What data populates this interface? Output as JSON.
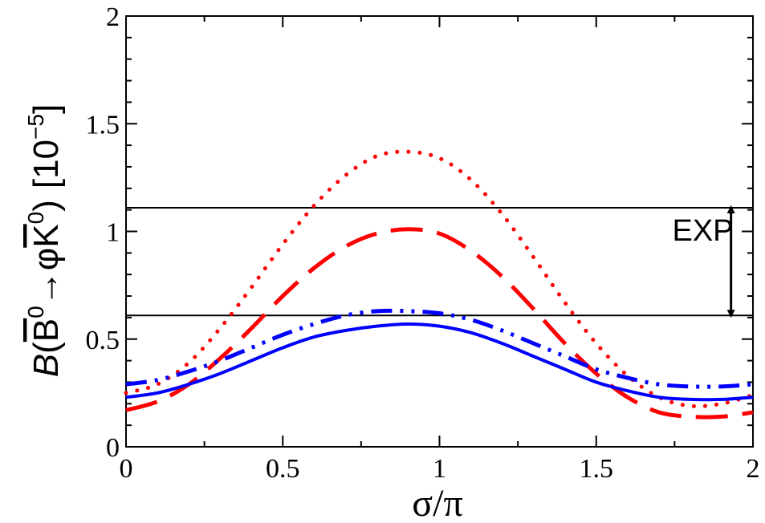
{
  "chart_data": {
    "type": "line",
    "title": "",
    "xlabel": "σ/π",
    "ylabel": {
      "prefix": "B",
      "paren_open": "(",
      "b_letter": "B",
      "b_sup": "0",
      "arrow": "→",
      "phi": "φ",
      "k_letter": "K",
      "k_sup": "0",
      "paren_close": ")",
      "unit": "[10",
      "unit_exp": "−5",
      "unit_close": "]"
    },
    "xlim": [
      0,
      2
    ],
    "ylim": [
      0,
      2
    ],
    "x_ticks": [
      {
        "value": 0,
        "label": "0"
      },
      {
        "value": 0.5,
        "label": "0.5"
      },
      {
        "value": 1,
        "label": "1"
      },
      {
        "value": 1.5,
        "label": "1.5"
      },
      {
        "value": 2,
        "label": "2"
      }
    ],
    "y_ticks": [
      {
        "value": 0,
        "label": "0"
      },
      {
        "value": 0.5,
        "label": "0.5"
      },
      {
        "value": 1,
        "label": "1"
      },
      {
        "value": 1.5,
        "label": "1.5"
      },
      {
        "value": 2,
        "label": "2"
      }
    ],
    "grid": false,
    "series": [
      {
        "name": "red-dotted",
        "color": "#ff0000",
        "style": "dotted",
        "x": [
          0,
          0.1,
          0.2,
          0.3,
          0.4,
          0.5,
          0.6,
          0.7,
          0.8,
          0.9,
          1.0,
          1.1,
          1.2,
          1.3,
          1.4,
          1.5,
          1.6,
          1.7,
          1.8,
          1.9,
          2.0
        ],
        "values": [
          0.25,
          0.29,
          0.39,
          0.55,
          0.74,
          0.94,
          1.12,
          1.26,
          1.35,
          1.37,
          1.34,
          1.24,
          1.08,
          0.88,
          0.67,
          0.48,
          0.33,
          0.23,
          0.19,
          0.2,
          0.24
        ]
      },
      {
        "name": "red-dashed",
        "color": "#ff0000",
        "style": "dashed",
        "x": [
          0,
          0.1,
          0.2,
          0.3,
          0.4,
          0.5,
          0.6,
          0.7,
          0.8,
          0.9,
          1.0,
          1.1,
          1.2,
          1.3,
          1.4,
          1.5,
          1.6,
          1.7,
          1.8,
          1.9,
          2.0
        ],
        "values": [
          0.17,
          0.21,
          0.29,
          0.41,
          0.55,
          0.7,
          0.83,
          0.93,
          0.99,
          1.01,
          0.99,
          0.91,
          0.79,
          0.64,
          0.48,
          0.34,
          0.23,
          0.16,
          0.14,
          0.14,
          0.16
        ]
      },
      {
        "name": "blue-dashdot",
        "color": "#0000ff",
        "style": "dashdot",
        "x": [
          0,
          0.1,
          0.2,
          0.3,
          0.4,
          0.5,
          0.6,
          0.7,
          0.8,
          0.9,
          1.0,
          1.1,
          1.2,
          1.3,
          1.4,
          1.5,
          1.6,
          1.7,
          1.8,
          1.9,
          2.0
        ],
        "values": [
          0.29,
          0.31,
          0.35,
          0.4,
          0.46,
          0.52,
          0.57,
          0.61,
          0.63,
          0.63,
          0.62,
          0.59,
          0.54,
          0.48,
          0.42,
          0.36,
          0.32,
          0.29,
          0.28,
          0.28,
          0.29
        ]
      },
      {
        "name": "blue-solid",
        "color": "#0000ff",
        "style": "solid",
        "x": [
          0,
          0.1,
          0.2,
          0.3,
          0.4,
          0.5,
          0.6,
          0.7,
          0.8,
          0.9,
          1.0,
          1.1,
          1.2,
          1.3,
          1.4,
          1.5,
          1.6,
          1.7,
          1.8,
          1.9,
          2.0
        ],
        "values": [
          0.23,
          0.25,
          0.29,
          0.34,
          0.4,
          0.46,
          0.51,
          0.54,
          0.56,
          0.57,
          0.56,
          0.53,
          0.48,
          0.42,
          0.36,
          0.3,
          0.26,
          0.23,
          0.22,
          0.22,
          0.23
        ]
      }
    ],
    "reference_lines": [
      {
        "name": "exp-upper",
        "value": 1.11,
        "color": "#000000"
      },
      {
        "name": "exp-lower",
        "value": 0.61,
        "color": "#000000"
      }
    ],
    "annotations": [
      {
        "text": "EXP",
        "x_data": 1.84,
        "y_data": 1.01,
        "arrow_x": 1.93,
        "arrow_from": 1.11,
        "arrow_to": 0.61
      }
    ]
  }
}
